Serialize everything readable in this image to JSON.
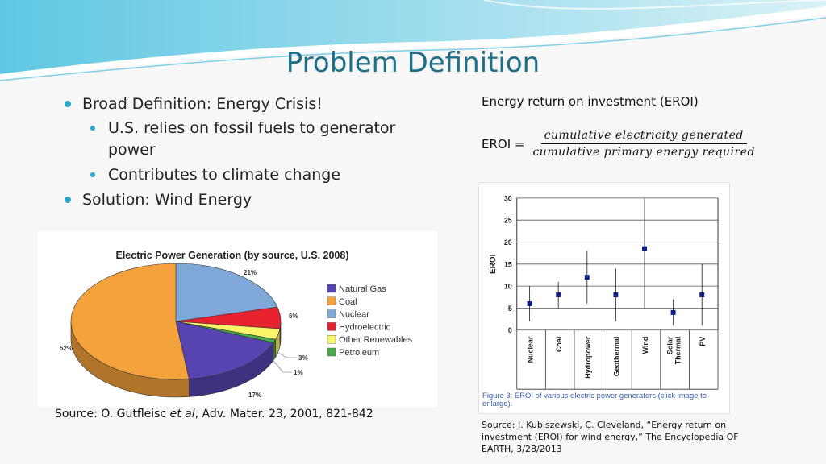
{
  "slide": {
    "title": "Problem Definition",
    "bullets": [
      {
        "text": "Broad Definition: Energy Crisis!",
        "sub": [
          "U.S. relies on fossil fuels to generator power",
          "Contributes to climate change"
        ]
      },
      {
        "text": "Solution: Wind Energy",
        "sub": []
      }
    ],
    "source_left_pre": "Source: O. Gutfleisc ",
    "source_left_em": "et al",
    "source_left_post": ", Adv. Mater. 23, 2001, 821-842",
    "eroi_heading": "Energy return on investment (EROI)",
    "formula_lhs": "EROI =",
    "formula_num": "cumulative electricity generated",
    "formula_den": "cumulative primary energy required",
    "source_right": "Source: I. Kubiszewski, C. Cleveland, “Energy return on investment (EROI) for wind energy,” The Encyclopedia OF EARTH, 3/28/2013",
    "theme": {
      "accent": "#2aa6c9",
      "title_color": "#1d6f8a"
    }
  },
  "chart_data": [
    {
      "type": "pie",
      "title": "Electric Power Generation (by source, U.S. 2008)",
      "slices": [
        {
          "name": "Nuclear",
          "value": 21,
          "label": "21%",
          "color": "#7fa8d8"
        },
        {
          "name": "Hydroelectric",
          "value": 6,
          "label": "6%",
          "color": "#e8212e"
        },
        {
          "name": "Other Renewables",
          "value": 3,
          "label": "3%",
          "color": "#fbf56a"
        },
        {
          "name": "Petroleum",
          "value": 1,
          "label": "1%",
          "color": "#47a948"
        },
        {
          "name": "Natural Gas",
          "value": 17,
          "label": "17%",
          "color": "#5744b0"
        },
        {
          "name": "Coal",
          "value": 52,
          "label": "52%",
          "color": "#f4a23c"
        }
      ],
      "legend": [
        "Natural Gas",
        "Coal",
        "Nuclear",
        "Hydroelectric",
        "Other Renewables",
        "Petroleum"
      ],
      "legend_colors": [
        "#5744b0",
        "#f4a23c",
        "#7fa8d8",
        "#e8212e",
        "#fbf56a",
        "#47a948"
      ]
    },
    {
      "type": "scatter",
      "ylabel": "EROI",
      "ylim": [
        0,
        30
      ],
      "yticks": [
        "0",
        "5",
        "10",
        "15",
        "20",
        "25",
        "30"
      ],
      "categories": [
        "Nuclear",
        "Coal",
        "Hydropower",
        "Geothermal",
        "Wind",
        "Solar Thermal",
        "PV"
      ],
      "values": [
        6,
        8,
        12,
        8,
        18.5,
        4,
        8
      ],
      "ranges": [
        [
          2,
          10
        ],
        [
          5,
          11
        ],
        [
          6,
          18
        ],
        [
          2,
          14
        ],
        [
          5,
          30
        ],
        [
          1,
          7
        ],
        [
          1,
          15
        ]
      ],
      "caption": "Figure 3: EROI of various electric power generators (click image to enlarge).",
      "point_color": "#0f1f8a"
    }
  ]
}
